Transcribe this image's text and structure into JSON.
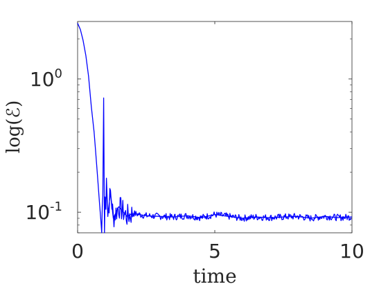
{
  "chart_data": {
    "type": "line",
    "xlabel": "time",
    "ylabel": "log(ℰ)",
    "xlim": [
      0,
      10
    ],
    "ylim": [
      0.07,
      2.7
    ],
    "y_scale": "log",
    "x_ticks": [
      "0",
      "5",
      "10"
    ],
    "y_ticks": [
      {
        "value": 1,
        "base": "10",
        "exp": "0"
      },
      {
        "value": 0.1,
        "base": "10",
        "exp": "-1"
      }
    ],
    "grid": false,
    "line_color": "#0000ff",
    "series": [
      {
        "x": [
          0,
          0.1,
          0.2,
          0.3,
          0.4,
          0.5,
          0.6,
          0.65,
          0.7,
          0.75,
          0.8,
          0.85,
          0.88,
          0.9,
          0.92,
          0.95,
          0.98,
          1.0,
          1.03,
          1.05,
          1.1,
          1.2,
          1.3,
          1.5,
          1.8,
          2.0,
          2.5,
          3.0,
          3.5,
          4.0,
          4.5,
          5.0,
          5.5,
          6.0,
          6.5,
          7.0,
          7.5,
          8.0,
          8.5,
          9.0,
          9.5,
          10.0
        ],
        "y": [
          2.62,
          2.35,
          1.95,
          1.5,
          1.05,
          0.62,
          0.4,
          0.3,
          0.22,
          0.16,
          0.115,
          0.085,
          0.07,
          0.11,
          0.13,
          0.72,
          0.07,
          0.13,
          0.105,
          0.18,
          0.095,
          0.14,
          0.09,
          0.11,
          0.093,
          0.098,
          0.094,
          0.093,
          0.092,
          0.094,
          0.091,
          0.096,
          0.093,
          0.09,
          0.092,
          0.091,
          0.092,
          0.093,
          0.09,
          0.093,
          0.091,
          0.092
        ]
      }
    ]
  }
}
